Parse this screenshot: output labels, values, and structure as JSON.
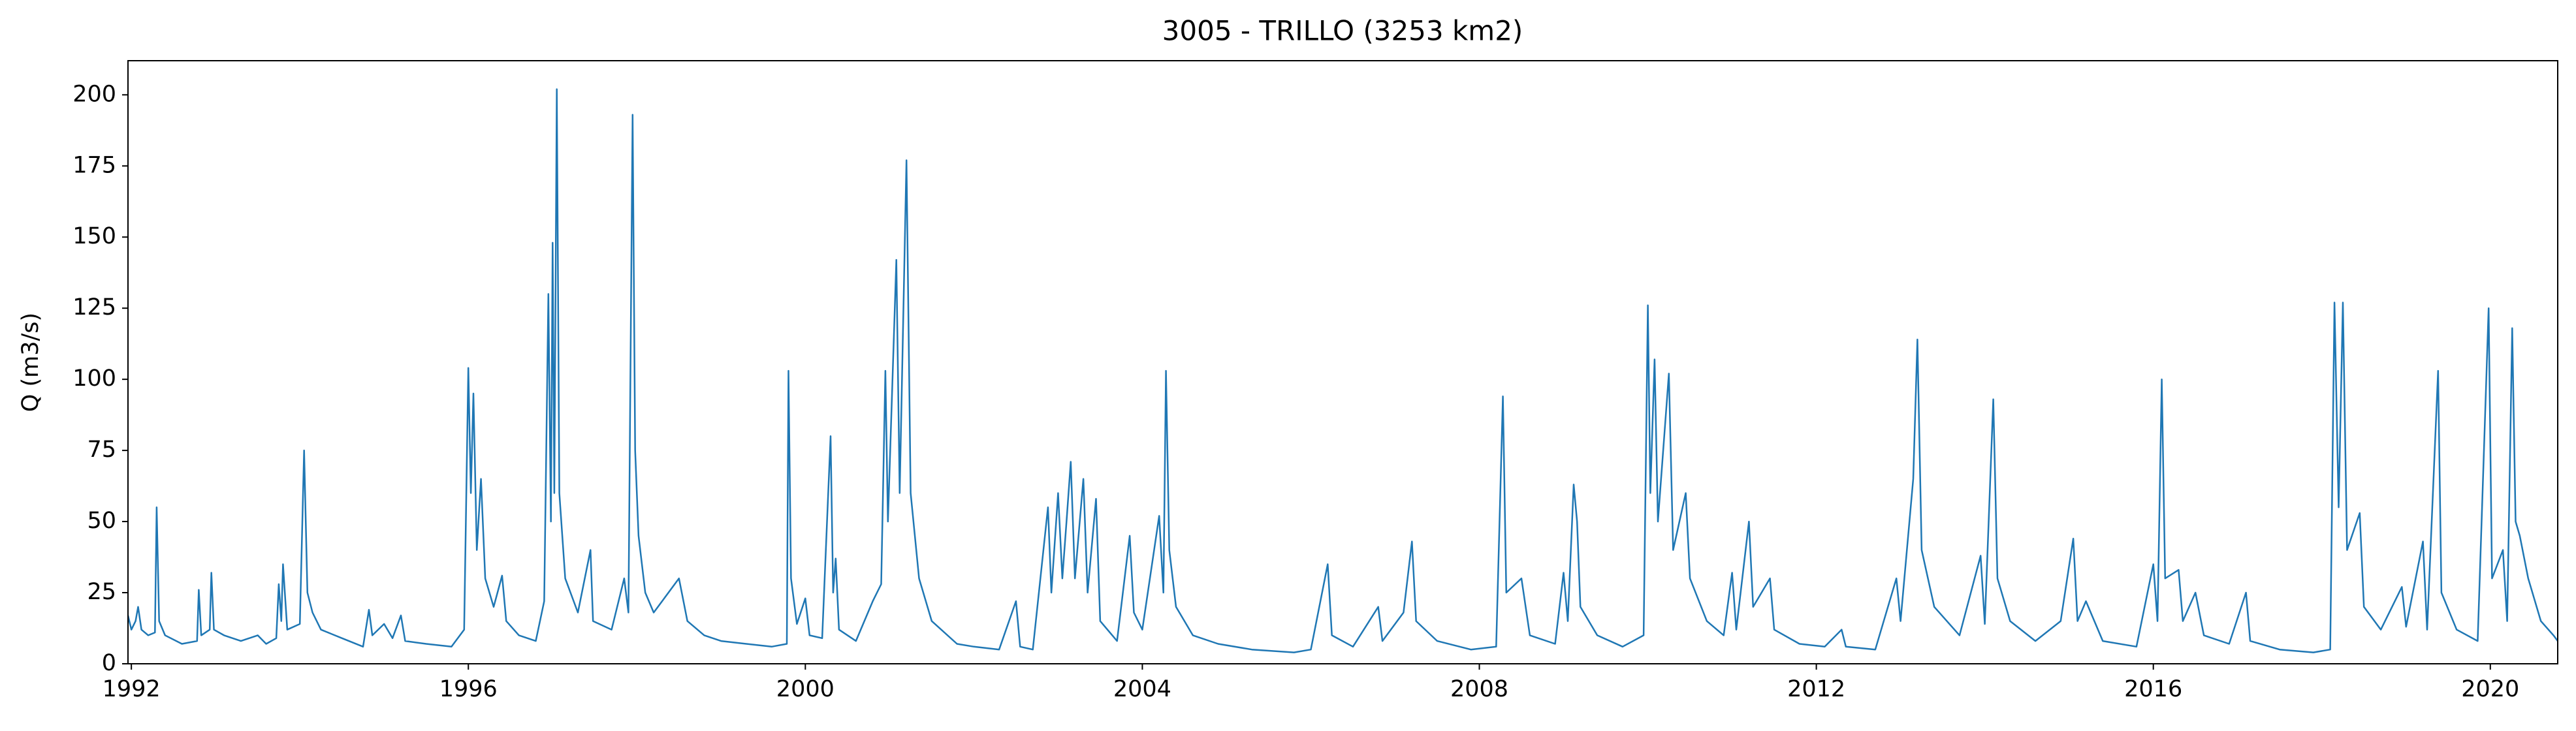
{
  "chart_data": {
    "type": "line",
    "title": "3005 - TRILLO (3253 km2)",
    "y_label": "Q (m3/s)",
    "color": "#1f77b4",
    "xlim": [
      1991.96,
      2020.8
    ],
    "xticks": [
      1992,
      1996,
      2000,
      2004,
      2008,
      2012,
      2016,
      2020
    ],
    "ylim": [
      0,
      212
    ],
    "yticks": [
      0,
      25,
      50,
      75,
      100,
      125,
      150,
      175,
      200
    ],
    "x": [
      1991.96,
      1992.0,
      1992.05,
      1992.08,
      1992.12,
      1992.2,
      1992.28,
      1992.3,
      1992.33,
      1992.4,
      1992.6,
      1992.78,
      1992.8,
      1992.83,
      1992.93,
      1992.95,
      1992.98,
      1993.1,
      1993.3,
      1993.5,
      1993.6,
      1993.72,
      1993.75,
      1993.78,
      1993.8,
      1993.85,
      1994.0,
      1994.05,
      1994.09,
      1994.15,
      1994.25,
      1994.5,
      1994.75,
      1994.82,
      1994.86,
      1995.0,
      1995.1,
      1995.2,
      1995.25,
      1995.5,
      1995.8,
      1995.95,
      1996.0,
      1996.03,
      1996.06,
      1996.1,
      1996.15,
      1996.2,
      1996.3,
      1996.4,
      1996.45,
      1996.6,
      1996.8,
      1996.9,
      1996.95,
      1996.98,
      1997.0,
      1997.02,
      1997.05,
      1997.08,
      1997.15,
      1997.3,
      1997.45,
      1997.48,
      1997.7,
      1997.85,
      1997.9,
      1997.95,
      1997.98,
      1998.02,
      1998.1,
      1998.2,
      1998.3,
      1998.5,
      1998.6,
      1998.8,
      1999.0,
      1999.3,
      1999.6,
      1999.78,
      1999.8,
      1999.83,
      1999.9,
      2000.0,
      2000.05,
      2000.2,
      2000.3,
      2000.33,
      2000.36,
      2000.4,
      2000.6,
      2000.8,
      2000.9,
      2000.95,
      2000.98,
      2001.08,
      2001.12,
      2001.2,
      2001.25,
      2001.35,
      2001.5,
      2001.8,
      2002.0,
      2002.3,
      2002.5,
      2002.55,
      2002.7,
      2002.88,
      2002.92,
      2003.0,
      2003.05,
      2003.1,
      2003.15,
      2003.2,
      2003.3,
      2003.35,
      2003.45,
      2003.5,
      2003.7,
      2003.85,
      2003.9,
      2004.0,
      2004.2,
      2004.25,
      2004.28,
      2004.32,
      2004.4,
      2004.6,
      2004.9,
      2005.3,
      2005.8,
      2006.0,
      2006.2,
      2006.25,
      2006.5,
      2006.8,
      2006.85,
      2007.1,
      2007.2,
      2007.25,
      2007.5,
      2007.9,
      2008.2,
      2008.28,
      2008.32,
      2008.5,
      2008.6,
      2008.9,
      2009.0,
      2009.05,
      2009.12,
      2009.16,
      2009.2,
      2009.4,
      2009.7,
      2009.95,
      2010.0,
      2010.03,
      2010.08,
      2010.12,
      2010.25,
      2010.3,
      2010.45,
      2010.5,
      2010.7,
      2010.9,
      2011.0,
      2011.05,
      2011.2,
      2011.25,
      2011.45,
      2011.5,
      2011.8,
      2012.1,
      2012.3,
      2012.35,
      2012.7,
      2012.95,
      2013.0,
      2013.15,
      2013.2,
      2013.25,
      2013.4,
      2013.7,
      2013.95,
      2014.0,
      2014.1,
      2014.15,
      2014.3,
      2014.6,
      2014.9,
      2015.05,
      2015.1,
      2015.2,
      2015.4,
      2015.8,
      2016.0,
      2016.05,
      2016.1,
      2016.14,
      2016.3,
      2016.35,
      2016.5,
      2016.6,
      2016.9,
      2017.1,
      2017.15,
      2017.5,
      2017.9,
      2018.1,
      2018.15,
      2018.2,
      2018.25,
      2018.3,
      2018.45,
      2018.5,
      2018.7,
      2018.95,
      2019.0,
      2019.2,
      2019.25,
      2019.38,
      2019.42,
      2019.6,
      2019.85,
      2019.98,
      2020.02,
      2020.15,
      2020.2,
      2020.26,
      2020.3,
      2020.35,
      2020.45,
      2020.6,
      2020.75,
      2020.8
    ],
    "values": [
      17,
      12,
      15,
      20,
      12,
      10,
      11,
      55,
      15,
      10,
      7,
      8,
      26,
      10,
      12,
      32,
      12,
      10,
      8,
      10,
      7,
      9,
      28,
      15,
      35,
      12,
      14,
      75,
      25,
      18,
      12,
      9,
      6,
      19,
      10,
      14,
      9,
      17,
      8,
      7,
      6,
      12,
      104,
      60,
      95,
      40,
      65,
      30,
      20,
      31,
      15,
      10,
      8,
      22,
      130,
      50,
      148,
      60,
      202,
      60,
      30,
      18,
      40,
      15,
      12,
      30,
      18,
      193,
      75,
      45,
      25,
      18,
      22,
      30,
      15,
      10,
      8,
      7,
      6,
      7,
      103,
      30,
      14,
      23,
      10,
      9,
      80,
      25,
      37,
      12,
      8,
      22,
      28,
      103,
      50,
      142,
      60,
      177,
      60,
      30,
      15,
      7,
      6,
      5,
      22,
      6,
      5,
      55,
      25,
      60,
      30,
      50,
      71,
      30,
      65,
      25,
      58,
      15,
      8,
      45,
      18,
      12,
      52,
      25,
      103,
      40,
      20,
      10,
      7,
      5,
      4,
      5,
      35,
      10,
      6,
      20,
      8,
      18,
      43,
      15,
      8,
      5,
      6,
      94,
      25,
      30,
      10,
      7,
      32,
      15,
      63,
      50,
      20,
      10,
      6,
      10,
      126,
      60,
      107,
      50,
      102,
      40,
      60,
      30,
      15,
      10,
      32,
      12,
      50,
      20,
      30,
      12,
      7,
      6,
      12,
      6,
      5,
      30,
      15,
      65,
      114,
      40,
      20,
      10,
      38,
      14,
      93,
      30,
      15,
      8,
      15,
      44,
      15,
      22,
      8,
      6,
      35,
      15,
      100,
      30,
      33,
      15,
      25,
      10,
      7,
      25,
      8,
      5,
      4,
      5,
      127,
      55,
      127,
      40,
      53,
      20,
      12,
      27,
      13,
      43,
      12,
      103,
      25,
      12,
      8,
      125,
      30,
      40,
      15,
      118,
      50,
      45,
      30,
      15,
      10,
      8
    ]
  }
}
